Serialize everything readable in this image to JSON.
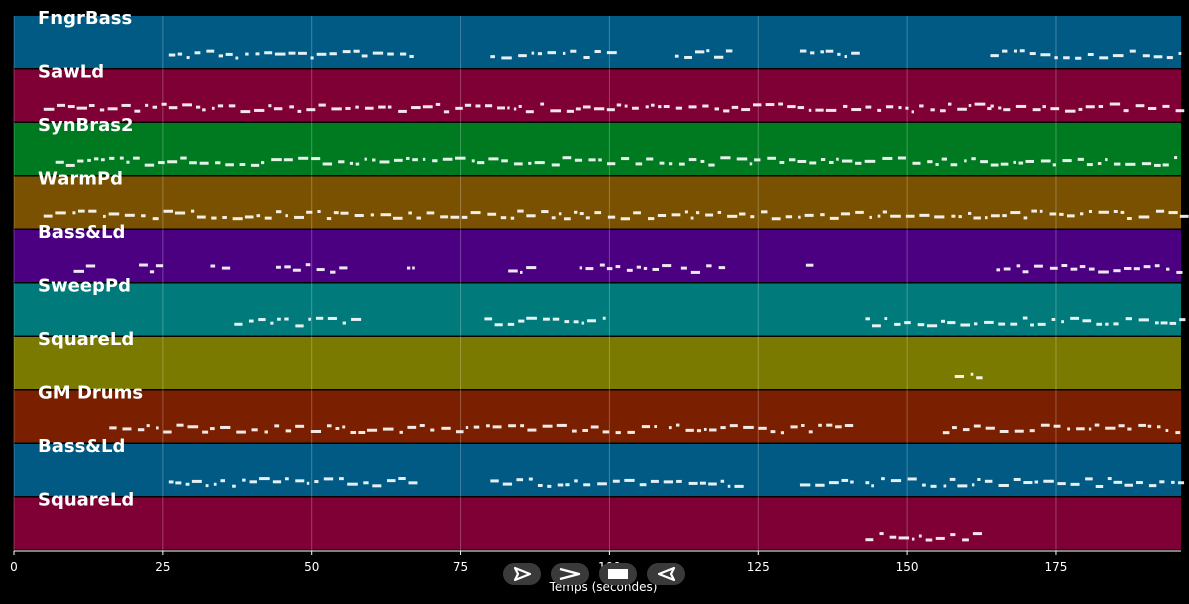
{
  "chart_data": {
    "type": "piano-roll",
    "xlabel": "Temps (secondes)",
    "xlim": [
      0,
      196
    ],
    "xticks": [
      0,
      25,
      50,
      75,
      100,
      125,
      150,
      175
    ],
    "grid": true,
    "tracks": [
      {
        "name": "FngrBass",
        "color": "#005a84",
        "activity": [
          [
            26,
            67
          ],
          [
            80,
            100
          ],
          [
            111,
            121
          ],
          [
            132,
            141
          ],
          [
            164,
            196
          ]
        ]
      },
      {
        "name": "SawLd",
        "color": "#7e0034",
        "activity": [
          [
            5,
            143
          ],
          [
            143,
            164
          ],
          [
            164,
            196
          ]
        ]
      },
      {
        "name": "SynBras2",
        "color": "#007a20",
        "activity": [
          [
            7,
            196
          ]
        ]
      },
      {
        "name": "WarmPd",
        "color": "#7a5100",
        "activity": [
          [
            5,
            196
          ]
        ]
      },
      {
        "name": "Bass&Ld",
        "color": "#4a0080",
        "activity": [
          [
            10,
            14
          ],
          [
            21,
            24
          ],
          [
            33,
            35
          ],
          [
            44,
            47
          ],
          [
            49,
            56
          ],
          [
            66,
            67
          ],
          [
            83,
            88
          ],
          [
            95,
            110
          ],
          [
            112,
            119
          ],
          [
            133,
            134
          ],
          [
            165,
            196
          ]
        ]
      },
      {
        "name": "SweepPd",
        "color": "#007a7a",
        "activity": [
          [
            37,
            58
          ],
          [
            79,
            100
          ],
          [
            143,
            196
          ]
        ]
      },
      {
        "name": "SquareLd",
        "color": "#7a7a00",
        "activity": [
          [
            158,
            162
          ]
        ]
      },
      {
        "name": "GM Drums",
        "color": "#7a2000",
        "activity": [
          [
            16,
            108
          ],
          [
            110,
            141
          ],
          [
            156,
            196
          ]
        ]
      },
      {
        "name": "Bass&Ld",
        "color": "#005a84",
        "activity": [
          [
            26,
            67
          ],
          [
            80,
            121
          ],
          [
            132,
            141
          ],
          [
            143,
            196
          ]
        ]
      },
      {
        "name": "SquareLd",
        "color": "#7e0034",
        "activity": [
          [
            143,
            163
          ]
        ]
      }
    ]
  },
  "controls": [
    {
      "name": "play-icon"
    },
    {
      "name": "fast-forward-icon"
    },
    {
      "name": "stop-icon"
    },
    {
      "name": "rewind-icon"
    }
  ]
}
